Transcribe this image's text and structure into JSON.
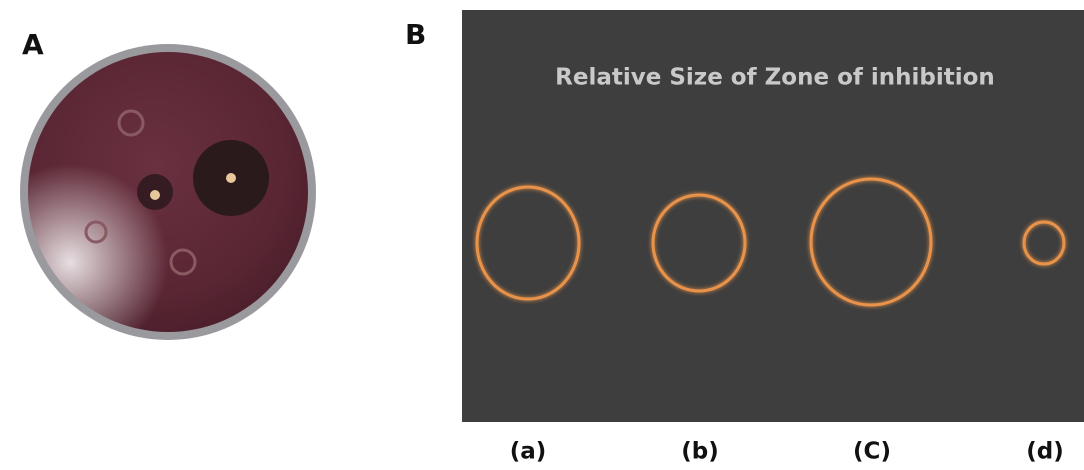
{
  "panels": [
    {
      "label": "A"
    },
    {
      "label": "B",
      "title": "Relative Size of Zone of inhibition",
      "labels": [
        "(a)",
        "(b)",
        "(C)",
        "(d)"
      ]
    }
  ]
}
